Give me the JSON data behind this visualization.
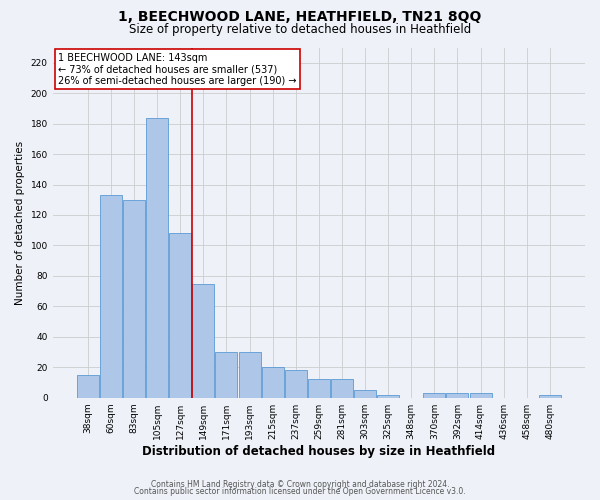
{
  "title": "1, BEECHWOOD LANE, HEATHFIELD, TN21 8QQ",
  "subtitle": "Size of property relative to detached houses in Heathfield",
  "xlabel": "Distribution of detached houses by size in Heathfield",
  "ylabel": "Number of detached properties",
  "categories": [
    "38sqm",
    "60sqm",
    "83sqm",
    "105sqm",
    "127sqm",
    "149sqm",
    "171sqm",
    "193sqm",
    "215sqm",
    "237sqm",
    "259sqm",
    "281sqm",
    "303sqm",
    "325sqm",
    "348sqm",
    "370sqm",
    "392sqm",
    "414sqm",
    "436sqm",
    "458sqm",
    "480sqm"
  ],
  "values": [
    15,
    133,
    130,
    184,
    108,
    75,
    30,
    30,
    20,
    18,
    12,
    12,
    5,
    2,
    0,
    3,
    3,
    3,
    0,
    0,
    2
  ],
  "bar_color": "#aec6e8",
  "bar_edge_color": "#5b9bd5",
  "annotation_line1": "1 BEECHWOOD LANE: 143sqm",
  "annotation_line2": "← 73% of detached houses are smaller (537)",
  "annotation_line3": "26% of semi-detached houses are larger (190) →",
  "annotation_box_color": "#ffffff",
  "annotation_box_edge_color": "#cc0000",
  "vline_color": "#cc0000",
  "vline_x": 4.5,
  "ylim": [
    0,
    230
  ],
  "yticks": [
    0,
    20,
    40,
    60,
    80,
    100,
    120,
    140,
    160,
    180,
    200,
    220
  ],
  "grid_color": "#cccccc",
  "bg_color": "#eef2f8",
  "footer_line1": "Contains HM Land Registry data © Crown copyright and database right 2024.",
  "footer_line2": "Contains public sector information licensed under the Open Government Licence v3.0.",
  "title_fontsize": 10,
  "subtitle_fontsize": 8.5,
  "xlabel_fontsize": 8.5,
  "ylabel_fontsize": 7.5,
  "tick_fontsize": 6.5,
  "annotation_fontsize": 7,
  "footer_fontsize": 5.5
}
